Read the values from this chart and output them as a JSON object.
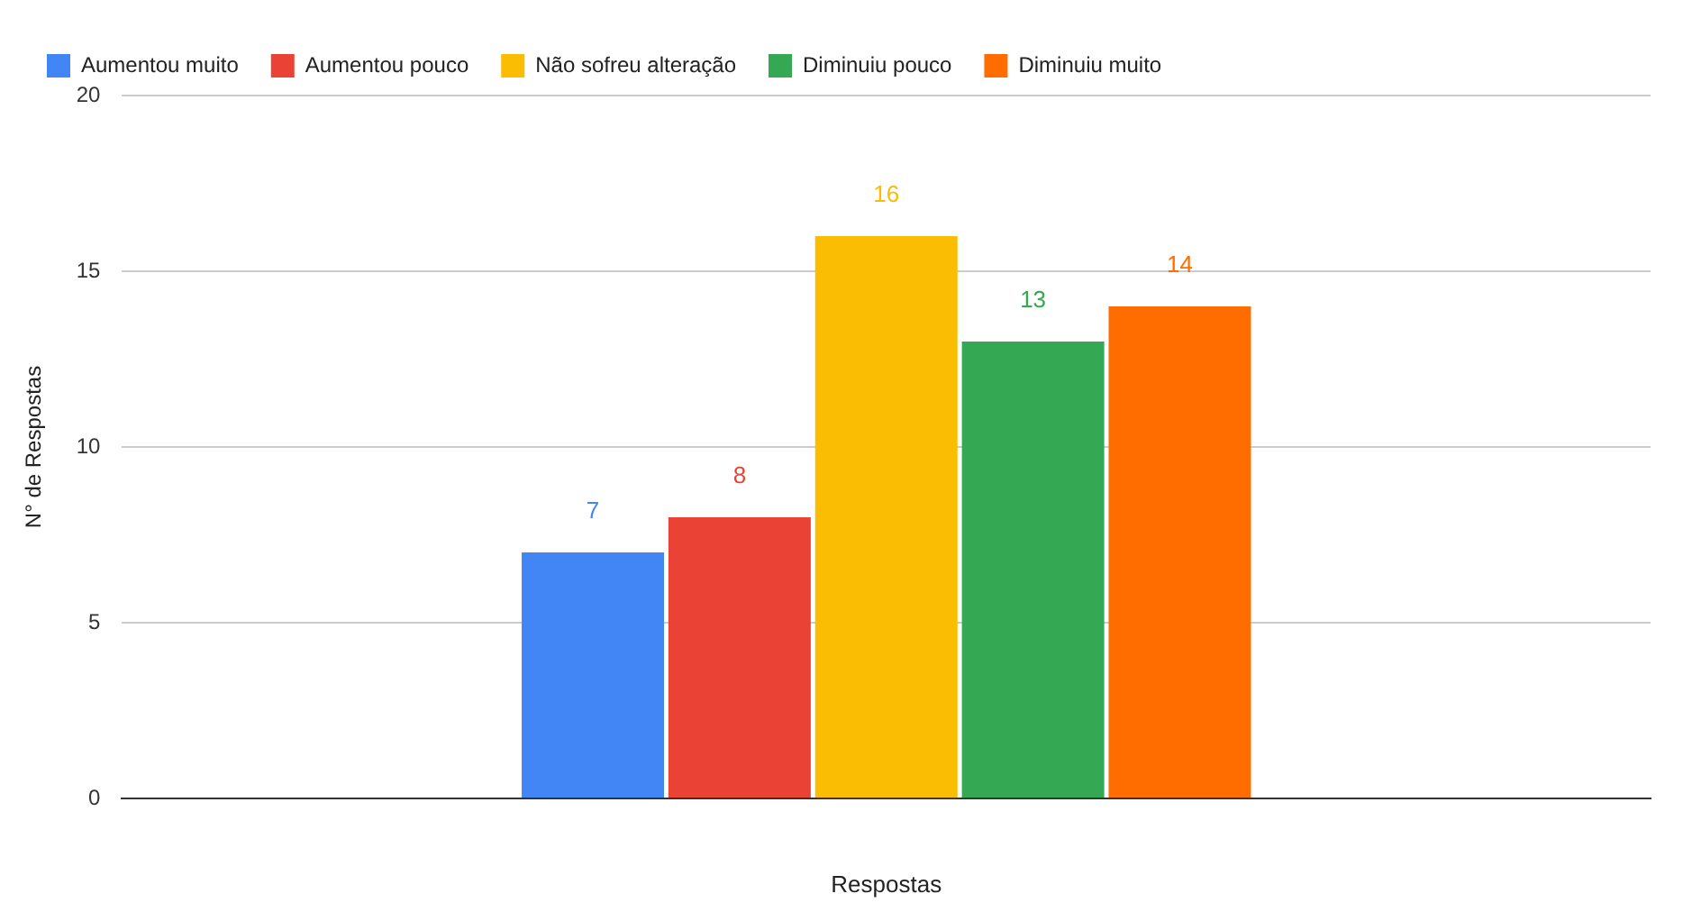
{
  "chart_data": {
    "type": "bar",
    "xlabel": "Respostas",
    "ylabel": "N° de Respostas",
    "categories": [
      null
    ],
    "series": [
      {
        "name": "Aumentou muito",
        "color": "#4285f4",
        "values": [
          7
        ]
      },
      {
        "name": "Aumentou pouco",
        "color": "#ea4335",
        "values": [
          8
        ]
      },
      {
        "name": "Não sofreu alteração",
        "color": "#fbbc04",
        "values": [
          16
        ]
      },
      {
        "name": "Diminuiu pouco",
        "color": "#34a853",
        "values": [
          13
        ]
      },
      {
        "name": "Diminuiu muito",
        "color": "#ff6d01",
        "values": [
          14
        ]
      }
    ],
    "ylim": [
      0,
      20
    ],
    "yticks": [
      0,
      5,
      10,
      15,
      20
    ],
    "grid": "y",
    "legend": "top left",
    "data_labels": true
  }
}
